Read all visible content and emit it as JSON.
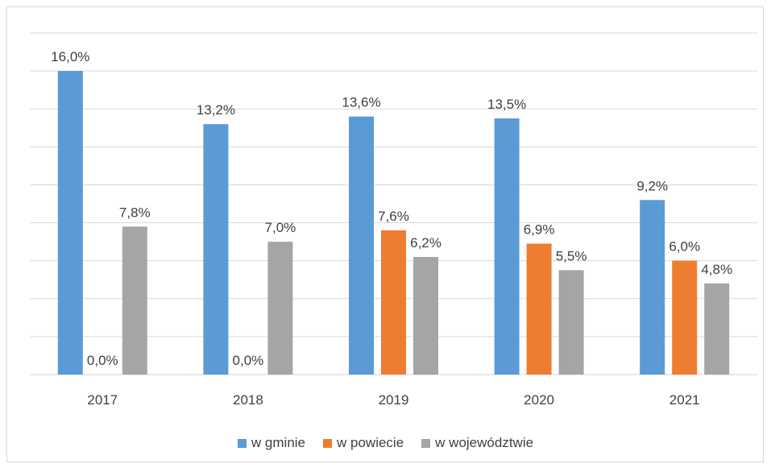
{
  "chart_data": {
    "type": "bar",
    "title": "",
    "xlabel": "",
    "ylabel": "",
    "ylim": [
      0,
      18
    ],
    "grid": true,
    "legend_position": "bottom",
    "categories": [
      "2017",
      "2018",
      "2019",
      "2020",
      "2021"
    ],
    "series": [
      {
        "name": "w gminie",
        "color": "#5B9BD5",
        "values": [
          16.0,
          13.2,
          13.6,
          13.5,
          9.2
        ],
        "labels": [
          "16,0%",
          "13,2%",
          "13,6%",
          "13,5%",
          "9,2%"
        ]
      },
      {
        "name": "w powiecie",
        "color": "#ED7D31",
        "values": [
          0.0,
          0.0,
          7.6,
          6.9,
          6.0
        ],
        "labels": [
          "0,0%",
          "0,0%",
          "7,6%",
          "6,9%",
          "6,0%"
        ]
      },
      {
        "name": "w województwie",
        "color": "#A5A5A5",
        "values": [
          7.8,
          7.0,
          6.2,
          5.5,
          4.8
        ],
        "labels": [
          "7,8%",
          "7,0%",
          "6,2%",
          "5,5%",
          "4,8%"
        ]
      }
    ]
  }
}
